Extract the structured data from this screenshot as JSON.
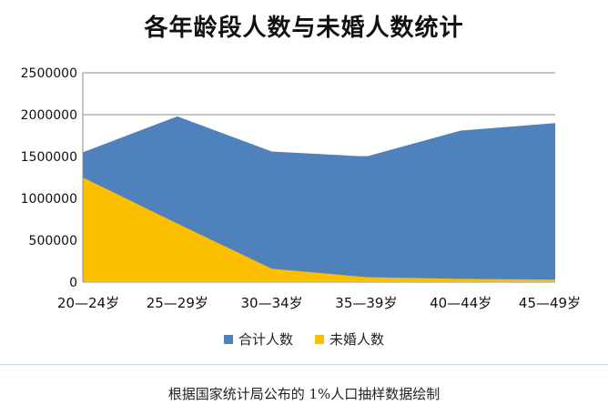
{
  "chart_data": {
    "type": "area",
    "title": "各年龄段人数与未婚人数统计",
    "categories": [
      "20—24岁",
      "25—29岁",
      "30—34岁",
      "35—39岁",
      "40—44岁",
      "45—49岁"
    ],
    "series": [
      {
        "name": "合计人数",
        "values": [
          1550000,
          1980000,
          1560000,
          1500000,
          1810000,
          1900000
        ],
        "color": "#4f81bd"
      },
      {
        "name": "未婚人数",
        "values": [
          1250000,
          700000,
          160000,
          60000,
          40000,
          30000
        ],
        "color": "#fbbf00"
      }
    ],
    "ylim": [
      0,
      2500000
    ],
    "yticks": [
      "0",
      "500000",
      "1000000",
      "1500000",
      "2000000",
      "2500000"
    ],
    "grid": true,
    "legend": "bottom"
  },
  "caption": "根据国家统计局公布的 1%人口抽样数据绘制"
}
